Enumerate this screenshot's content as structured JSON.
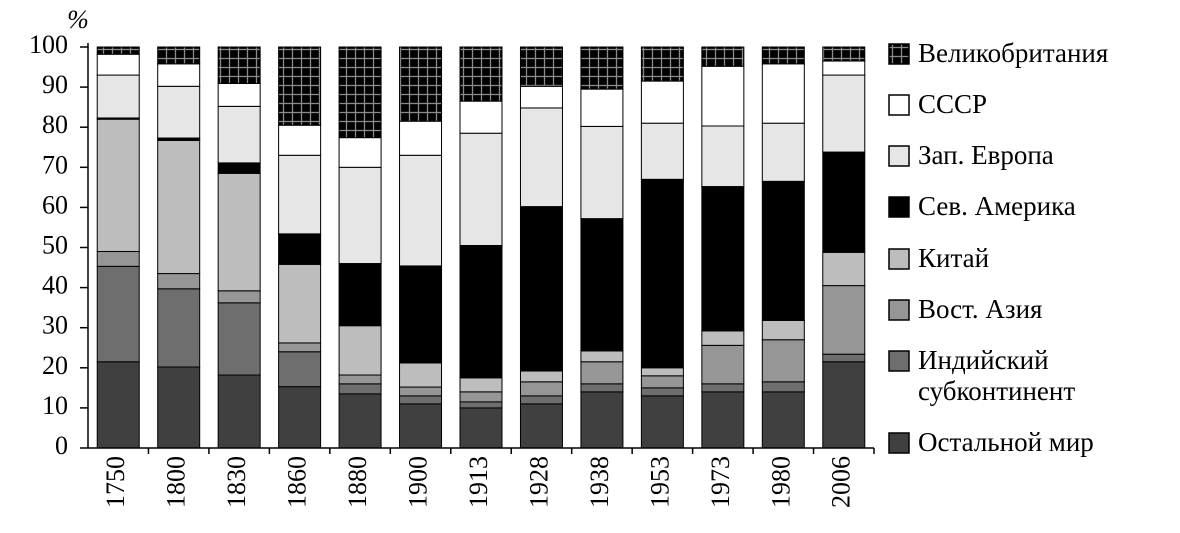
{
  "chart_data": {
    "type": "stacked_bar",
    "y_label": "%",
    "categories": [
      "1750",
      "1800",
      "1830",
      "1860",
      "1880",
      "1900",
      "1913",
      "1928",
      "1938",
      "1953",
      "1973",
      "1980",
      "2006"
    ],
    "ylim": [
      0,
      100
    ],
    "yticks": [
      0,
      10,
      20,
      30,
      40,
      50,
      60,
      70,
      80,
      90,
      100
    ],
    "series": [
      {
        "name": "Остальной мир",
        "color": "#404040",
        "values": [
          21.5,
          20.2,
          18.2,
          15.3,
          13.5,
          11,
          10,
          11,
          14,
          13,
          14,
          14,
          21.5
        ]
      },
      {
        "name": "Индийский субконтинент",
        "color": "#6e6e6e",
        "values": [
          23.8,
          19.5,
          18,
          8.7,
          2.5,
          2,
          1.5,
          2,
          2,
          2,
          2,
          2.5,
          1.9
        ]
      },
      {
        "name": "Вост. Азия",
        "color": "#969696",
        "values": [
          3.7,
          3.8,
          3,
          2.2,
          2.2,
          2.2,
          2.5,
          3.5,
          5.5,
          3,
          9.6,
          10.5,
          17.1
        ]
      },
      {
        "name": "Китай",
        "color": "#bdbdbd",
        "values": [
          33,
          33.2,
          29.3,
          19.6,
          12.3,
          6,
          3.5,
          2.7,
          2.7,
          2,
          3.6,
          4.8,
          8.3
        ]
      },
      {
        "name": "Сев. Америка",
        "color": "#000000",
        "values": [
          0.3,
          0.6,
          2.6,
          7.6,
          15.5,
          24.2,
          33,
          41,
          33,
          47,
          36,
          34.7,
          25
        ]
      },
      {
        "name": "Зап. Европа",
        "color": "#e6e6e6",
        "values": [
          10.7,
          12.9,
          14.1,
          19.6,
          24,
          27.6,
          28,
          24.6,
          23,
          14,
          15.1,
          14.5,
          19.2
        ]
      },
      {
        "name": "СССР",
        "color": "#ffffff",
        "values": [
          5.2,
          5.6,
          5.7,
          7.5,
          7.4,
          8.5,
          8,
          5.4,
          9.3,
          10.5,
          14.9,
          14.8,
          3.5
        ]
      },
      {
        "name": "Великобритания",
        "color": "#000000",
        "pattern": "grid",
        "values": [
          1.8,
          4.2,
          9.1,
          19.5,
          22.6,
          18.5,
          13.5,
          9.8,
          10.5,
          8.5,
          4.8,
          4.2,
          3.5
        ]
      }
    ]
  }
}
